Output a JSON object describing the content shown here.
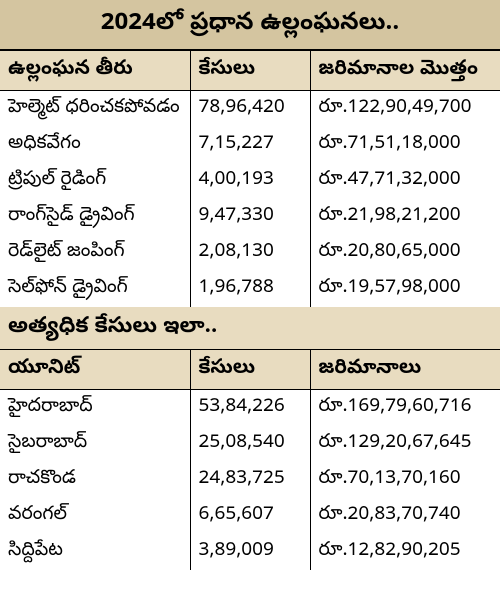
{
  "main_title": "2024లో ప్రధాన ఉల్లంఘనలు..",
  "table1": {
    "headers": [
      "ఉల్లంఘన తీరు",
      "కేసులు",
      "జరిమానాల మొత్తం"
    ],
    "rows": [
      [
        "హెల్మెట్ ధరించకపోవడం",
        "78,96,420",
        "రూ.122,90,49,700"
      ],
      [
        "అధికవేగం",
        "7,15,227",
        "రూ.71,51,18,000"
      ],
      [
        "ట్రిపుల్ రైడింగ్",
        "4,00,193",
        "రూ.47,71,32,000"
      ],
      [
        "రాంగ్‌సైడ్ డ్రైవింగ్",
        "9,47,330",
        "రూ.21,98,21,200"
      ],
      [
        "రెడ్‌లైట్ జంపింగ్",
        "2,08,130",
        "రూ.20,80,65,000"
      ],
      [
        "సెల్‌ఫోన్ డ్రైవింగ్",
        "1,96,788",
        "రూ.19,57,98,000"
      ]
    ]
  },
  "section2_title": "అత్యధిక కేసులు ఇలా..",
  "table2": {
    "headers": [
      "యూనిట్",
      "కేసులు",
      "జరిమానాలు"
    ],
    "rows": [
      [
        "హైదరాబాద్",
        "53,84,226",
        "రూ.169,79,60,716"
      ],
      [
        "సైబరాబాద్",
        "25,08,540",
        "రూ.129,20,67,645"
      ],
      [
        "రాచకొండ",
        "24,83,725",
        "రూ.70,13,70,160"
      ],
      [
        "వరంగల్",
        "6,65,607",
        "రూ.20,83,70,740"
      ],
      [
        "సిద్దిపేట",
        "3,89,009",
        "రూ.12,82,90,205"
      ]
    ]
  },
  "colors": {
    "header_bg": "#d4c5a0",
    "subheader_bg": "#e8dcc0",
    "text": "#000000",
    "border": "#000000",
    "row_bg": "#ffffff"
  }
}
